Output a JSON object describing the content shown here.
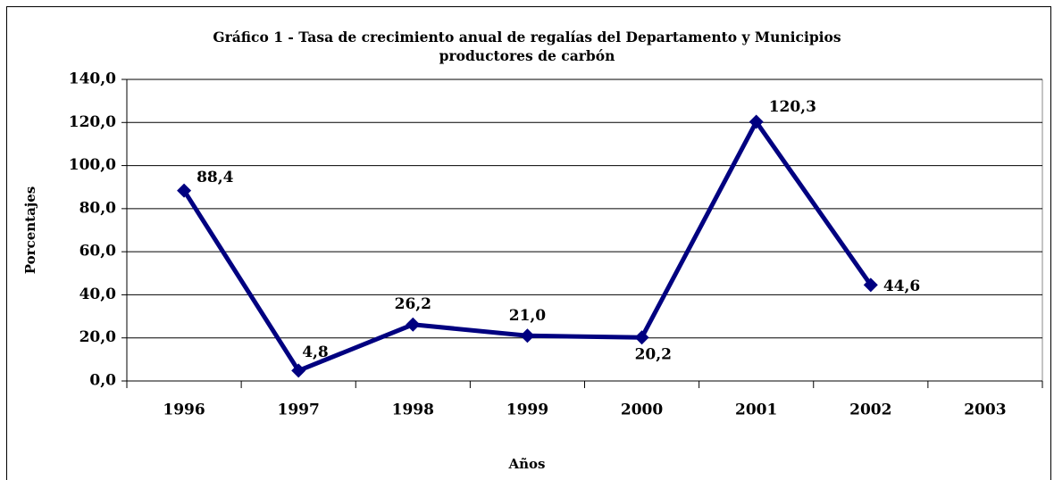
{
  "chart_data": {
    "type": "line",
    "title": [
      "Gráfico 1 - Tasa de crecimiento anual de regalías del Departamento y Municipios",
      "productores de carbón"
    ],
    "x_label": "Años",
    "y_label": "Porcentajes",
    "categories": [
      "1996",
      "1997",
      "1998",
      "1999",
      "2000",
      "2001",
      "2002",
      "2003"
    ],
    "series": [
      {
        "color": "#000080",
        "values": [
          88.4,
          4.8,
          26.2,
          21.0,
          20.2,
          120.3,
          44.6,
          null
        ],
        "value_labels": [
          "88,4",
          "4,8",
          "26,2",
          "21,0",
          "20,2",
          "120,3",
          "44,6",
          null
        ]
      }
    ],
    "ylim": [
      0,
      140
    ],
    "yticks": [
      {
        "value": 0,
        "label": "0,0"
      },
      {
        "value": 20,
        "label": "20,0"
      },
      {
        "value": 40,
        "label": "40,0"
      },
      {
        "value": 60,
        "label": "60,0"
      },
      {
        "value": 80,
        "label": "80,0"
      },
      {
        "value": 100,
        "label": "100,0"
      },
      {
        "value": 120,
        "label": "120,0"
      },
      {
        "value": 140,
        "label": "140,0"
      }
    ],
    "grid": true
  }
}
